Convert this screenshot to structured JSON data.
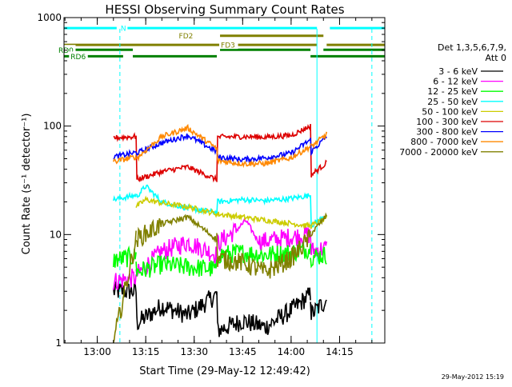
{
  "colors": {
    "background": "#ffffff",
    "axis": "#000000",
    "cyan": "#00ffff",
    "dark_green": "#008000",
    "olive": "#808000"
  },
  "chart_data": {
    "type": "line",
    "title": "HESSI Observing Summary Count Rates",
    "xlabel": "Start Time (29-May-12 12:49:42)",
    "ylabel": "Count Rate (s⁻¹ detector⁻¹)",
    "yscale": "log",
    "x_unit": "time of day (HH:MM)",
    "xlim": [
      "12:49:42",
      "14:29:00"
    ],
    "ylim": [
      1,
      1000
    ],
    "x_ticks": [
      "13:00",
      "13:15",
      "13:30",
      "13:45",
      "14:00",
      "14:15"
    ],
    "y_ticks": [
      1,
      10,
      100,
      1000
    ],
    "y_tick_labels": [
      "1",
      "10",
      "100",
      "1000"
    ],
    "timestamp": "29-May-2012 15:19",
    "legend": {
      "header": [
        "Det 1,3,5,6,7,9,",
        "Att 0"
      ],
      "placement": "right",
      "entries": [
        {
          "label": "3 - 6 keV",
          "color": "#000000"
        },
        {
          "label": "6 - 12 keV",
          "color": "#ff00ff"
        },
        {
          "label": "12 - 25 keV",
          "color": "#00ff00"
        },
        {
          "label": "25 - 50 keV",
          "color": "#00ffff"
        },
        {
          "label": "50 - 100 keV",
          "color": "#cccc00"
        },
        {
          "label": "100 - 300 keV",
          "color": "#dd0000"
        },
        {
          "label": "300 - 800 keV",
          "color": "#0000ff"
        },
        {
          "label": "800 - 7000 keV",
          "color": "#ff8800"
        },
        {
          "label": "7000 - 20000 keV",
          "color": "#808000"
        }
      ]
    },
    "flag_bars": [
      {
        "label": "N",
        "y": 800,
        "color": "#00ffff",
        "spans": [
          [
            "12:49:42",
            "13:06:00"
          ],
          [
            "13:07:00",
            "14:08:00"
          ],
          [
            "14:12:00",
            "14:29:00"
          ]
        ]
      },
      {
        "label": "FD2",
        "y": 680,
        "color": "#808000",
        "spans": [
          [
            "13:38:00",
            "14:10:00"
          ]
        ]
      },
      {
        "label": "FD3",
        "y": 560,
        "color": "#808000",
        "spans": [
          [
            "12:49:42",
            "14:08:00"
          ],
          [
            "14:11:00",
            "14:29:00"
          ]
        ]
      },
      {
        "label": "RD0",
        "y": 505,
        "color": "#008000",
        "spans": [
          [
            "12:51:00",
            "13:11:00"
          ],
          [
            "13:38:00",
            "14:06:00"
          ],
          [
            "14:10:00",
            "14:29:00"
          ]
        ]
      },
      {
        "label": "RD6",
        "y": 440,
        "color": "#008000",
        "spans": [
          [
            "12:49:42",
            "13:08:00"
          ],
          [
            "13:11:00",
            "13:37:00"
          ],
          [
            "14:06:00",
            "14:29:00"
          ]
        ]
      }
    ],
    "event_lines": [
      {
        "time": "12:49:42",
        "style": "solid",
        "color": "#00ffff"
      },
      {
        "time": "13:07:00",
        "style": "dashed",
        "color": "#00ffff"
      },
      {
        "time": "14:08:00",
        "style": "solid",
        "color": "#00ffff"
      },
      {
        "time": "14:25:00",
        "style": "dashed",
        "color": "#00ffff"
      }
    ],
    "segments": [
      {
        "start": "13:04:30",
        "end": "13:12:00"
      },
      {
        "start": "13:12:00",
        "end": "13:37:00"
      },
      {
        "start": "13:37:00",
        "end": "14:06:00"
      },
      {
        "start": "14:06:00",
        "end": "14:11:00"
      }
    ],
    "series": [
      {
        "name": "3 - 6 keV",
        "x": [
          "13:05",
          "13:12",
          "13:12",
          "13:20",
          "13:28",
          "13:37",
          "13:37",
          "13:45",
          "13:52",
          "14:00",
          "14:06",
          "14:06",
          "14:11"
        ],
        "values": [
          3.0,
          3.0,
          1.5,
          2.2,
          1.8,
          2.8,
          1.3,
          1.6,
          1.4,
          2.0,
          2.8,
          1.8,
          2.5
        ]
      },
      {
        "name": "6 - 12 keV",
        "x": [
          "13:05",
          "13:12",
          "13:12",
          "13:20",
          "13:28",
          "13:37",
          "13:37",
          "13:43",
          "13:46",
          "13:50",
          "14:00",
          "14:06",
          "14:06",
          "14:11"
        ],
        "values": [
          3.7,
          4.0,
          4.2,
          7.0,
          8.5,
          6.5,
          8.2,
          11.0,
          13.5,
          8.5,
          9.5,
          10.0,
          7.0,
          7.5
        ]
      },
      {
        "name": "12 - 25 keV",
        "x": [
          "13:05",
          "13:12",
          "13:12",
          "13:20",
          "13:28",
          "13:37",
          "13:37",
          "13:45",
          "13:52",
          "14:00",
          "14:06",
          "14:06",
          "14:11"
        ],
        "values": [
          5.8,
          6.3,
          4.5,
          5.3,
          5.0,
          4.8,
          6.5,
          6.8,
          6.5,
          6.8,
          7.5,
          6.2,
          6.5
        ]
      },
      {
        "name": "25 - 50 keV",
        "x": [
          "13:05",
          "13:12",
          "13:12",
          "13:15",
          "13:20",
          "13:28",
          "13:37",
          "13:37",
          "13:45",
          "13:52",
          "14:00",
          "14:06",
          "14:06",
          "14:11"
        ],
        "values": [
          21.0,
          23.0,
          22.0,
          28.0,
          20.0,
          17.5,
          16.0,
          20.0,
          21.0,
          20.5,
          21.5,
          23.0,
          12.0,
          15.0
        ]
      },
      {
        "name": "50 - 100 keV",
        "x": [
          "13:12",
          "13:15",
          "13:20",
          "13:28",
          "13:37",
          "14:06",
          "14:11"
        ],
        "values": [
          18.0,
          21.0,
          19.5,
          18.0,
          15.5,
          12.0,
          14.0
        ]
      },
      {
        "name": "100 - 300 keV",
        "x": [
          "13:05",
          "13:12",
          "13:12",
          "13:20",
          "13:28",
          "13:37",
          "13:37",
          "13:45",
          "13:52",
          "14:00",
          "14:06",
          "14:06",
          "14:11"
        ],
        "values": [
          78.0,
          80.0,
          32.0,
          38.0,
          42.0,
          32.0,
          79.0,
          80.0,
          79.0,
          82.0,
          100.0,
          35.0,
          46.0
        ]
      },
      {
        "name": "300 - 800 keV",
        "x": [
          "13:05",
          "13:12",
          "13:12",
          "13:20",
          "13:28",
          "13:37",
          "13:37",
          "13:45",
          "13:52",
          "14:00",
          "14:06",
          "14:06",
          "14:11"
        ],
        "values": [
          52.0,
          57.0,
          56.0,
          70.0,
          82.0,
          58.0,
          52.0,
          49.0,
          51.0,
          56.0,
          75.0,
          57.0,
          80.0
        ]
      },
      {
        "name": "800 - 7000 keV",
        "x": [
          "13:05",
          "13:12",
          "13:12",
          "13:20",
          "13:28",
          "13:37",
          "13:37",
          "13:45",
          "13:52",
          "14:00",
          "14:06",
          "14:06",
          "14:11"
        ],
        "values": [
          47.0,
          52.0,
          50.0,
          80.0,
          96.0,
          62.0,
          48.0,
          45.0,
          45.0,
          51.0,
          65.0,
          64.0,
          84.0
        ]
      },
      {
        "name": "7000 - 20000 keV",
        "x": [
          "13:05",
          "13:12",
          "13:12",
          "13:20",
          "13:28",
          "13:37",
          "13:37",
          "13:45",
          "13:52",
          "14:00",
          "14:06",
          "14:06",
          "14:11"
        ],
        "values": [
          1.0,
          9.0,
          9.0,
          12.5,
          14.5,
          9.0,
          6.0,
          5.5,
          4.5,
          6.0,
          9.5,
          10.0,
          15.0
        ]
      }
    ]
  }
}
